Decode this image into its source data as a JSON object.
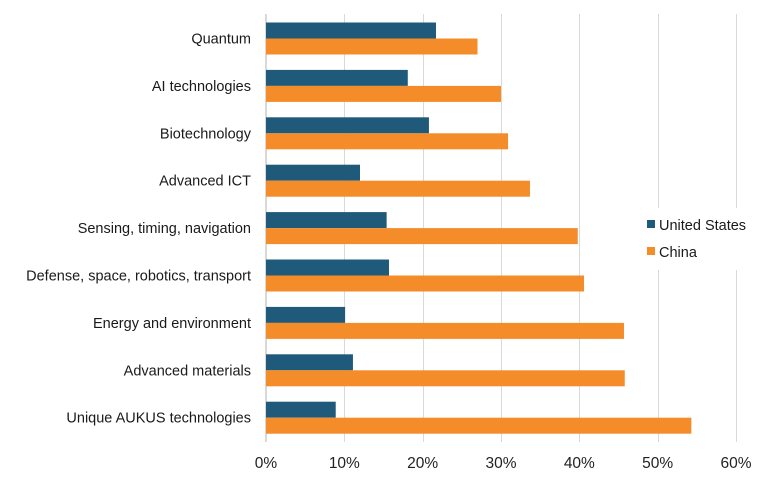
{
  "chart_data": {
    "type": "bar",
    "orientation": "horizontal",
    "title": "",
    "xlabel": "",
    "ylabel": "",
    "xlim": [
      0,
      60
    ],
    "x_ticks": [
      0,
      10,
      20,
      30,
      40,
      50,
      60
    ],
    "x_tick_labels": [
      "0%",
      "10%",
      "20%",
      "30%",
      "40%",
      "50%",
      "60%"
    ],
    "value_unit": "%",
    "grid": "vertical",
    "legend_position": "right",
    "categories": [
      "Quantum",
      "AI technologies",
      "Biotechnology",
      "Advanced ICT",
      "Sensing, timing, navigation",
      "Defense, space, robotics, transport",
      "Energy and environment",
      "Advanced materials",
      "Unique AUKUS technologies"
    ],
    "series": [
      {
        "name": "United States",
        "color": "#1f5a7a",
        "values": [
          21.7,
          18.1,
          20.8,
          12.0,
          15.4,
          15.7,
          10.1,
          11.1,
          8.9
        ]
      },
      {
        "name": "China",
        "color": "#f58c2a",
        "values": [
          27.0,
          30.0,
          30.9,
          33.7,
          39.8,
          40.6,
          45.7,
          45.8,
          54.3
        ]
      }
    ]
  }
}
